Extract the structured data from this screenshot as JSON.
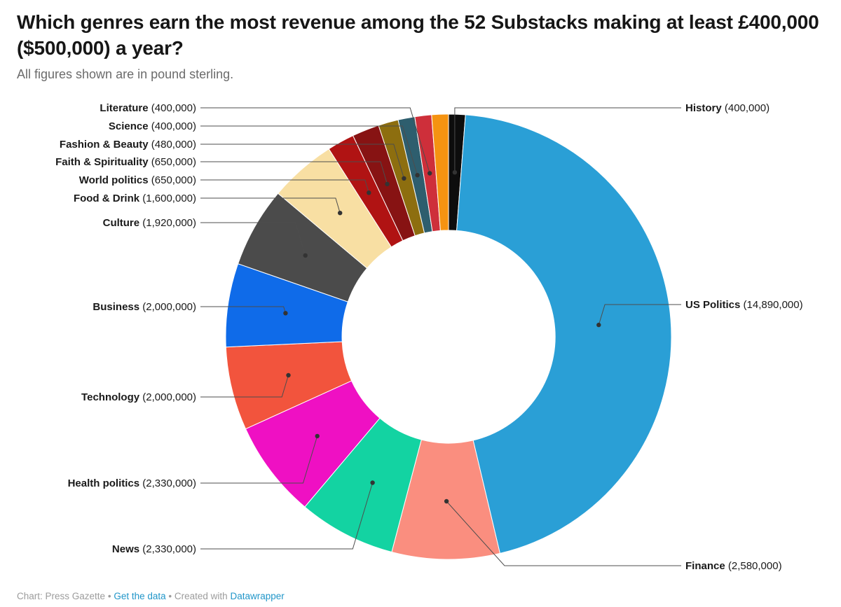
{
  "header": {
    "title": "Which genres earn the most revenue among the 52 Substacks making at least £400,000 ($500,000) a year?",
    "subtitle": "All figures shown are in pound sterling."
  },
  "footer": {
    "attribution": "Chart: Press Gazette",
    "separator": "•",
    "get_data_label": "Get the data",
    "created_with": "Created with",
    "datawrapper_label": "Datawrapper"
  },
  "chart_data": {
    "type": "pie",
    "subtype": "donut",
    "title": "Which genres earn the most revenue among the 52 Substacks making at least £400,000 ($500,000) a year?",
    "subtitle": "All figures shown are in pound sterling.",
    "currency": "pound sterling (£)",
    "legend_position": "none",
    "series": [
      {
        "label": "History",
        "value": 400000,
        "display": "400,000",
        "color": "#0d0d0d"
      },
      {
        "label": "US Politics",
        "value": 14890000,
        "display": "14,890,000",
        "color": "#2a9fd6"
      },
      {
        "label": "Finance",
        "value": 2580000,
        "display": "2,580,000",
        "color": "#fa8e7f"
      },
      {
        "label": "News",
        "value": 2330000,
        "display": "2,330,000",
        "color": "#13d3a2"
      },
      {
        "label": "Health politics",
        "value": 2330000,
        "display": "2,330,000",
        "color": "#ef10c3"
      },
      {
        "label": "Technology",
        "value": 2000000,
        "display": "2,000,000",
        "color": "#f2543d"
      },
      {
        "label": "Business",
        "value": 2000000,
        "display": "2,000,000",
        "color": "#0f6be9"
      },
      {
        "label": "Culture",
        "value": 1920000,
        "display": "1,920,000",
        "color": "#4b4b4b"
      },
      {
        "label": "Food & Drink",
        "value": 1600000,
        "display": "1,600,000",
        "color": "#f8dfa3"
      },
      {
        "label": "World politics",
        "value": 650000,
        "display": "650,000",
        "color": "#b01313"
      },
      {
        "label": "Faith & Spirituality",
        "value": 650000,
        "display": "650,000",
        "color": "#871313"
      },
      {
        "label": "Fashion & Beauty",
        "value": 480000,
        "display": "480,000",
        "color": "#8d6e0f"
      },
      {
        "label": "Science",
        "value": 400000,
        "display": "400,000",
        "color": "#2e5e6e"
      },
      {
        "label": "Literature",
        "value": 400000,
        "display": "400,000",
        "color": "#ce2f3a"
      },
      {
        "label": "",
        "value": 400000,
        "display": "",
        "color": "#f59311"
      }
    ]
  }
}
